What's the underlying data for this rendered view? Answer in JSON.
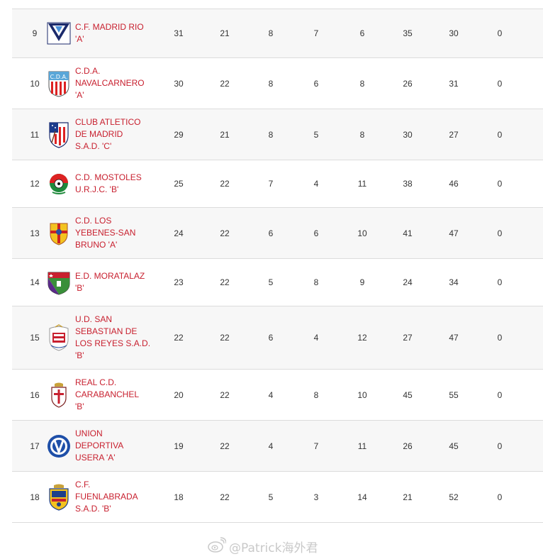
{
  "standings": {
    "rows": [
      {
        "pos": "9",
        "name": "C.F. MADRID RIO\n'A'",
        "crest": "madrid-rio-crest",
        "pts": "31",
        "pj": "21",
        "pg": "8",
        "pe": "7",
        "pp": "6",
        "gf": "35",
        "gc": "30",
        "sn": "0"
      },
      {
        "pos": "10",
        "name": "C.D.A.\nNAVALCARNERO\n'A'",
        "crest": "navalcarnero-crest",
        "pts": "30",
        "pj": "22",
        "pg": "8",
        "pe": "6",
        "pp": "8",
        "gf": "26",
        "gc": "31",
        "sn": "0"
      },
      {
        "pos": "11",
        "name": "CLUB ATLETICO\nDE MADRID\nS.A.D. 'C'",
        "crest": "atletico-madrid-crest",
        "pts": "29",
        "pj": "21",
        "pg": "8",
        "pe": "5",
        "pp": "8",
        "gf": "30",
        "gc": "27",
        "sn": "0"
      },
      {
        "pos": "12",
        "name": "C.D. MOSTOLES\nU.R.J.C. 'B'",
        "crest": "mostoles-crest",
        "pts": "25",
        "pj": "22",
        "pg": "7",
        "pe": "4",
        "pp": "11",
        "gf": "38",
        "gc": "46",
        "sn": "0"
      },
      {
        "pos": "13",
        "name": "C.D. LOS\nYEBENES-SAN\nBRUNO 'A'",
        "crest": "yebenes-crest",
        "pts": "24",
        "pj": "22",
        "pg": "6",
        "pe": "6",
        "pp": "10",
        "gf": "41",
        "gc": "47",
        "sn": "0"
      },
      {
        "pos": "14",
        "name": "E.D. MORATALAZ\n'B'",
        "crest": "moratalaz-crest",
        "pts": "23",
        "pj": "22",
        "pg": "5",
        "pe": "8",
        "pp": "9",
        "gf": "24",
        "gc": "34",
        "sn": "0"
      },
      {
        "pos": "15",
        "name": "U.D. SAN\nSEBASTIAN DE\nLOS REYES S.A.D.\n'B'",
        "crest": "sanse-crest",
        "pts": "22",
        "pj": "22",
        "pg": "6",
        "pe": "4",
        "pp": "12",
        "gf": "27",
        "gc": "47",
        "sn": "0"
      },
      {
        "pos": "16",
        "name": "REAL C.D.\nCARABANCHEL\n'B'",
        "crest": "carabanchel-crest",
        "pts": "20",
        "pj": "22",
        "pg": "4",
        "pe": "8",
        "pp": "10",
        "gf": "45",
        "gc": "55",
        "sn": "0"
      },
      {
        "pos": "17",
        "name": "UNION\nDEPORTIVA\nUSERA 'A'",
        "crest": "usera-crest",
        "pts": "19",
        "pj": "22",
        "pg": "4",
        "pe": "7",
        "pp": "11",
        "gf": "26",
        "gc": "45",
        "sn": "0"
      },
      {
        "pos": "18",
        "name": "C.F.\nFUENLABRADA\nS.A.D. 'B'",
        "crest": "fuenlabrada-crest",
        "pts": "18",
        "pj": "22",
        "pg": "5",
        "pe": "3",
        "pp": "14",
        "gf": "21",
        "gc": "52",
        "sn": "0"
      }
    ]
  },
  "colors": {
    "team_link": "#c8202f",
    "row_alt": "#f7f7f7",
    "row_border": "#dcdcdc",
    "text": "#333333"
  },
  "watermark": {
    "text": "@Patrick海外君",
    "icon": "weibo-icon"
  }
}
